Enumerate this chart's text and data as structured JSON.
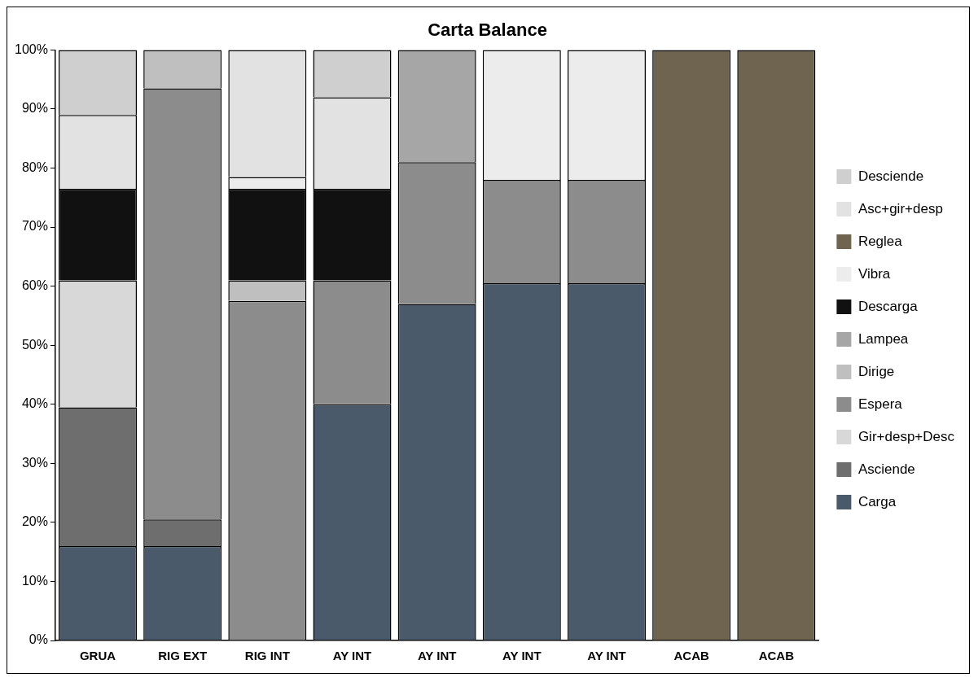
{
  "chart_data": {
    "type": "bar",
    "title": "Carta Balance",
    "stacked": true,
    "categories": [
      "GRUA",
      "RIG EXT",
      "RIG INT",
      "AY INT",
      "AY INT",
      "AY INT",
      "AY INT",
      "ACAB",
      "ACAB"
    ],
    "series": [
      {
        "name": "Carga",
        "color": "#4a5a6a",
        "values": [
          16,
          16,
          null,
          40,
          57,
          60.5,
          60.5,
          null,
          null
        ]
      },
      {
        "name": "Asciende",
        "color": "#6e6e6e",
        "values": [
          23.5,
          4.5,
          null,
          null,
          null,
          null,
          null,
          null,
          null
        ]
      },
      {
        "name": "Gir+desp+Desc",
        "color": "#d8d8d8",
        "values": [
          21.5,
          null,
          null,
          null,
          null,
          null,
          null,
          null,
          null
        ]
      },
      {
        "name": "Espera",
        "color": "#8c8c8c",
        "values": [
          null,
          73,
          57.5,
          21,
          24,
          17.5,
          17.5,
          null,
          null
        ]
      },
      {
        "name": "Dirige",
        "color": "#bfbfbf",
        "values": [
          null,
          6.5,
          3.5,
          null,
          null,
          null,
          null,
          null,
          null
        ]
      },
      {
        "name": "Lampea",
        "color": "#a6a6a6",
        "values": [
          null,
          null,
          null,
          null,
          19,
          null,
          null,
          null,
          null
        ]
      },
      {
        "name": "Descarga",
        "color": "#111111",
        "values": [
          15.5,
          null,
          15.5,
          15.5,
          null,
          null,
          null,
          null,
          null
        ]
      },
      {
        "name": "Vibra",
        "color": "#ececec",
        "values": [
          null,
          null,
          2,
          null,
          null,
          22,
          22,
          null,
          null
        ]
      },
      {
        "name": "Reglea",
        "color": "#6e6450",
        "values": [
          null,
          null,
          null,
          null,
          null,
          null,
          null,
          100,
          100
        ]
      },
      {
        "name": "Asc+gir+desp",
        "color": "#e2e2e2",
        "values": [
          12.5,
          null,
          21.5,
          15.5,
          null,
          null,
          null,
          null,
          null
        ]
      },
      {
        "name": "Desciende",
        "color": "#cfcfcf",
        "values": [
          11,
          null,
          null,
          8,
          null,
          null,
          null,
          null,
          null
        ]
      }
    ],
    "ylim": [
      0,
      100
    ],
    "yticks": [
      {
        "value": 0,
        "label": "0%"
      },
      {
        "value": 10,
        "label": "10%"
      },
      {
        "value": 20,
        "label": "20%"
      },
      {
        "value": 30,
        "label": "30%"
      },
      {
        "value": 40,
        "label": "40%"
      },
      {
        "value": 50,
        "label": "50%"
      },
      {
        "value": 60,
        "label": "60%"
      },
      {
        "value": 70,
        "label": "70%"
      },
      {
        "value": 80,
        "label": "80%"
      },
      {
        "value": 90,
        "label": "90%"
      },
      {
        "value": 100,
        "label": "100%"
      }
    ],
    "grid": false,
    "legend": "right"
  }
}
